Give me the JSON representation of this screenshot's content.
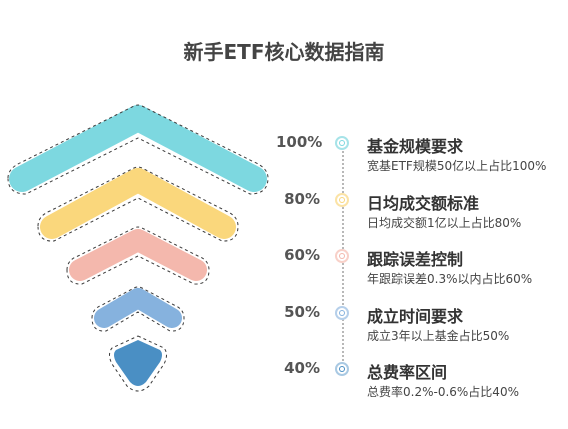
{
  "title": "新手ETF核心数据指南",
  "colors": {
    "level1": "#7dd8e0",
    "level2": "#fad77c",
    "level3": "#f4b8ad",
    "level4": "#86b2de",
    "level5": "#4a8fc4",
    "dashed_outline": "#3a3a3a"
  },
  "items": [
    {
      "percent": "100%",
      "heading": "基金规模要求",
      "detail": "宽基ETF规模50亿以上占比100%"
    },
    {
      "percent": "80%",
      "heading": "日均成交额标准",
      "detail": "日均成交额1亿以上占比80%"
    },
    {
      "percent": "60%",
      "heading": "跟踪误差控制",
      "detail": "年跟踪误差0.3%以内占比60%"
    },
    {
      "percent": "50%",
      "heading": "成立时间要求",
      "detail": "成立3年以上基金占比50%"
    },
    {
      "percent": "40%",
      "heading": "总费率区间",
      "detail": "总费率0.2%-0.6%占比40%"
    }
  ]
}
